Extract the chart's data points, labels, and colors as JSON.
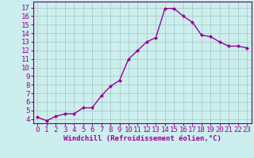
{
  "x": [
    0,
    1,
    2,
    3,
    4,
    5,
    6,
    7,
    8,
    9,
    10,
    11,
    12,
    13,
    14,
    15,
    16,
    17,
    18,
    19,
    20,
    21,
    22,
    23
  ],
  "y": [
    4.2,
    3.8,
    4.3,
    4.6,
    4.6,
    5.3,
    5.3,
    6.7,
    7.8,
    8.5,
    11.0,
    12.0,
    13.0,
    13.5,
    16.9,
    16.9,
    16.0,
    15.3,
    13.8,
    13.6,
    13.0,
    12.5,
    12.5,
    12.3
  ],
  "line_color": "#990099",
  "marker": "D",
  "marker_size": 2.0,
  "bg_color": "#cceeed",
  "grid_color": "#aacccc",
  "xlabel": "Windchill (Refroidissement éolien,°C)",
  "xlabel_color": "#990099",
  "tick_color": "#990099",
  "xlim": [
    -0.5,
    23.5
  ],
  "ylim": [
    3.5,
    17.7
  ],
  "yticks": [
    4,
    5,
    6,
    7,
    8,
    9,
    10,
    11,
    12,
    13,
    14,
    15,
    16,
    17
  ],
  "xticks": [
    0,
    1,
    2,
    3,
    4,
    5,
    6,
    7,
    8,
    9,
    10,
    11,
    12,
    13,
    14,
    15,
    16,
    17,
    18,
    19,
    20,
    21,
    22,
    23
  ],
  "axis_color": "#660066",
  "line_width": 1.0,
  "font_size": 6.5
}
